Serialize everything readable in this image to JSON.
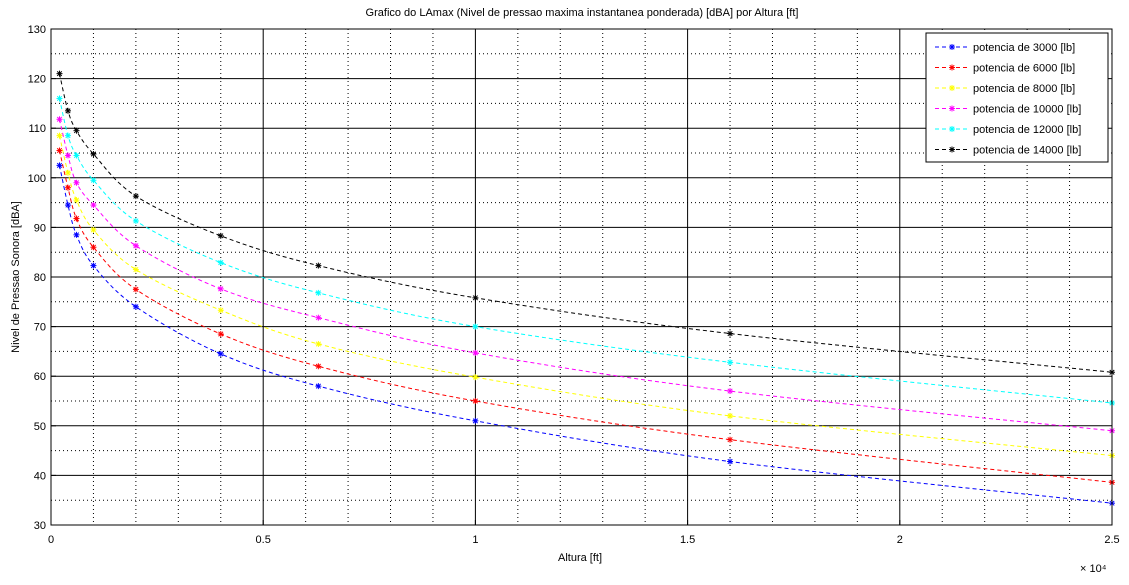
{
  "chart_data": {
    "type": "line",
    "title": "Grafico do LAmax (Nivel de pressao maxima instantanea ponderada) [dBA] por Altura [ft]",
    "xlabel": "Altura [ft]",
    "ylabel": "Nivel de Pressao Sonora [dBA]",
    "x_exponent_label": "× 10⁴",
    "xlim": [
      0,
      25000
    ],
    "ylim": [
      30,
      130
    ],
    "xticks": [
      0,
      5000,
      10000,
      15000,
      20000,
      25000
    ],
    "xtick_labels": [
      "0",
      "0.5",
      "1",
      "1.5",
      "2",
      "2.5"
    ],
    "yticks": [
      30,
      40,
      50,
      60,
      70,
      80,
      90,
      100,
      110,
      120,
      130
    ],
    "ytick_labels": [
      "30",
      "40",
      "50",
      "60",
      "70",
      "80",
      "90",
      "100",
      "110",
      "120",
      "130"
    ],
    "grid": true,
    "legend_position": "top-right",
    "x": [
      200,
      400,
      600,
      1000,
      2000,
      4000,
      6300,
      10000,
      16000,
      25000
    ],
    "series": [
      {
        "name": "potencia de 3000 [lb]",
        "color": "#0000ff",
        "values": [
          102.5,
          94.5,
          88.5,
          82.3,
          74.0,
          64.5,
          58.0,
          51.0,
          42.8,
          34.4
        ]
      },
      {
        "name": "potencia de 6000 [lb]",
        "color": "#ff0000",
        "values": [
          105.5,
          98.0,
          91.8,
          86.0,
          77.5,
          68.5,
          62.0,
          55.0,
          47.2,
          38.6
        ]
      },
      {
        "name": "potencia de 8000 [lb]",
        "color": "#ffff00",
        "values": [
          108.5,
          101.0,
          95.5,
          89.5,
          81.5,
          73.3,
          66.5,
          59.8,
          52.0,
          44.0
        ]
      },
      {
        "name": "potencia de 10000 [lb]",
        "color": "#ff00ff",
        "values": [
          111.8,
          104.5,
          99.0,
          94.5,
          86.3,
          77.6,
          71.8,
          64.7,
          57.0,
          49.0
        ]
      },
      {
        "name": "potencia de 12000 [lb]",
        "color": "#00ffff",
        "values": [
          116.0,
          108.5,
          104.5,
          99.5,
          91.3,
          82.9,
          76.8,
          70.0,
          62.8,
          54.6
        ]
      },
      {
        "name": "potencia de 14000 [lb]",
        "color": "#000000",
        "values": [
          121.0,
          113.5,
          109.5,
          104.8,
          96.3,
          88.3,
          82.3,
          75.8,
          68.6,
          60.8
        ]
      }
    ]
  }
}
